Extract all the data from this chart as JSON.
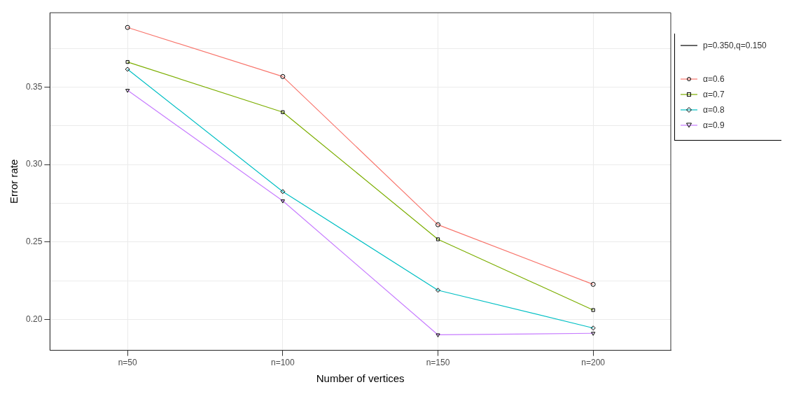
{
  "chart_data": {
    "type": "line",
    "xlabel": "Number of vertices",
    "ylabel": "Error rate",
    "legend_title": "p=0.350,q=0.150",
    "categories": [
      "n=50",
      "n=100",
      "n=150",
      "n=200"
    ],
    "series": [
      {
        "name": "α=0.6",
        "color": "#f8766d",
        "marker": "circle",
        "values": [
          0.3885,
          0.3568,
          0.2611,
          0.2226
        ]
      },
      {
        "name": "α=0.7",
        "color": "#7cae00",
        "marker": "square",
        "values": [
          0.3662,
          0.3338,
          0.2517,
          0.206
        ]
      },
      {
        "name": "α=0.8",
        "color": "#00bfc4",
        "marker": "diamond",
        "values": [
          0.3615,
          0.2825,
          0.2188,
          0.1944
        ]
      },
      {
        "name": "α=0.9",
        "color": "#c77cff",
        "marker": "triangle",
        "values": [
          0.3479,
          0.2765,
          0.19,
          0.191
        ]
      }
    ],
    "ylim": [
      0.18,
      0.398
    ],
    "yticks": [
      {
        "value": 0.2,
        "label": "0.20"
      },
      {
        "value": 0.225,
        "label": null
      },
      {
        "value": 0.25,
        "label": "0.25"
      },
      {
        "value": 0.275,
        "label": null
      },
      {
        "value": 0.3,
        "label": "0.30"
      },
      {
        "value": 0.325,
        "label": null
      },
      {
        "value": 0.35,
        "label": "0.35"
      },
      {
        "value": 0.375,
        "label": null
      }
    ],
    "grid": true,
    "legend": "right",
    "line_style": "solid"
  }
}
